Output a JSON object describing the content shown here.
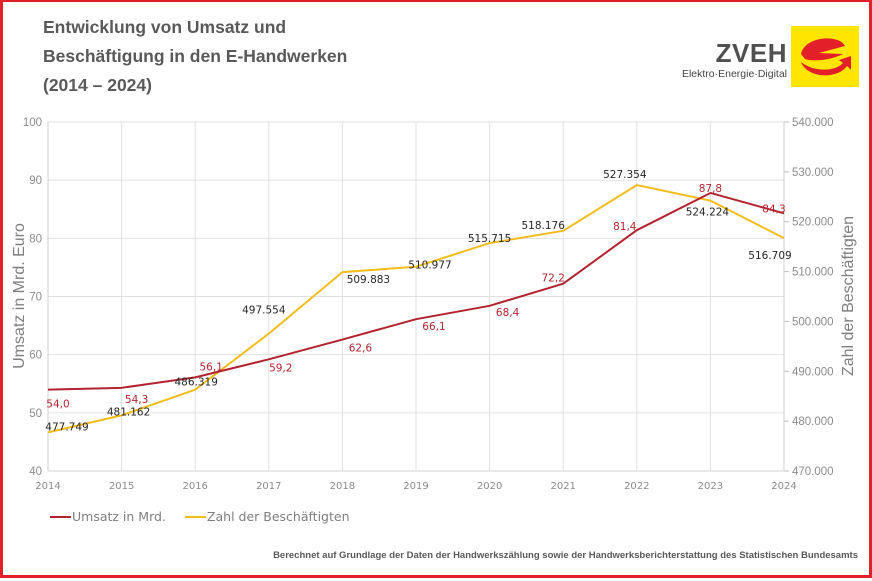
{
  "header": {
    "title_lines": [
      "Entwicklung von Umsatz und",
      "Beschäftigung in den E-Handwerken",
      "(2014 – 2024)"
    ]
  },
  "logo": {
    "name": "ZVEH",
    "tagline": "Elektro·Energie·Digital",
    "icon": "e-mark-icon"
  },
  "colors": {
    "frame": "#e3202a",
    "umsatz": "#b3232f",
    "beschaeftigte": "#f2bc1b",
    "grid": "#e0e0e0",
    "logo_bg": "#ffe500",
    "logo_mark": "#e3202a"
  },
  "footer": {
    "source": "Berechnet auf Grundlage der Daten der Handwerkszählung sowie der Handwerksberichterstattung des Statistischen Bundesamts"
  },
  "chart_data": {
    "type": "line",
    "title": "Entwicklung von Umsatz und Beschäftigung in den E-Handwerken (2014 – 2024)",
    "x": [
      "2014",
      "2015",
      "2016",
      "2017",
      "2018",
      "2019",
      "2020",
      "2021",
      "2022",
      "2023",
      "2024"
    ],
    "series": [
      {
        "name": "Umsatz in Mrd.",
        "axis": "left",
        "values": [
          54.0,
          54.3,
          56.1,
          59.2,
          62.6,
          66.1,
          68.4,
          72.2,
          81.4,
          87.8,
          84.3
        ],
        "labels": [
          "54,0",
          "54,3",
          "56,1",
          "59,2",
          "62,6",
          "66,1",
          "68,4",
          "72,2",
          "81,4",
          "87,8",
          "84,3"
        ]
      },
      {
        "name": "Zahl der Beschäftigten",
        "axis": "right",
        "values": [
          477749,
          481162,
          486319,
          497554,
          509883,
          510977,
          515715,
          518176,
          527354,
          524224,
          516709
        ],
        "labels": [
          "477.749",
          "481.162",
          "486.319",
          "497.554",
          "509.883",
          "510.977",
          "515.715",
          "518.176",
          "527.354",
          "524.224",
          "516.709"
        ]
      }
    ],
    "ylabel": "Umsatz in Mrd. Euro",
    "ylim": [
      40,
      100
    ],
    "yticks": [
      "40",
      "50",
      "60",
      "70",
      "80",
      "90",
      "100"
    ],
    "ytick_values": [
      40,
      50,
      60,
      70,
      80,
      90,
      100
    ],
    "y2label": "Zahl der Beschäftigten",
    "y2lim": [
      470000,
      540000
    ],
    "y2ticks": [
      "470.000",
      "480.000",
      "490.000",
      "500.000",
      "510.000",
      "520.000",
      "530.000",
      "540.000"
    ],
    "y2tick_values": [
      470000,
      480000,
      490000,
      500000,
      510000,
      520000,
      530000,
      540000
    ],
    "grid": true,
    "legend": "bottom-left"
  }
}
